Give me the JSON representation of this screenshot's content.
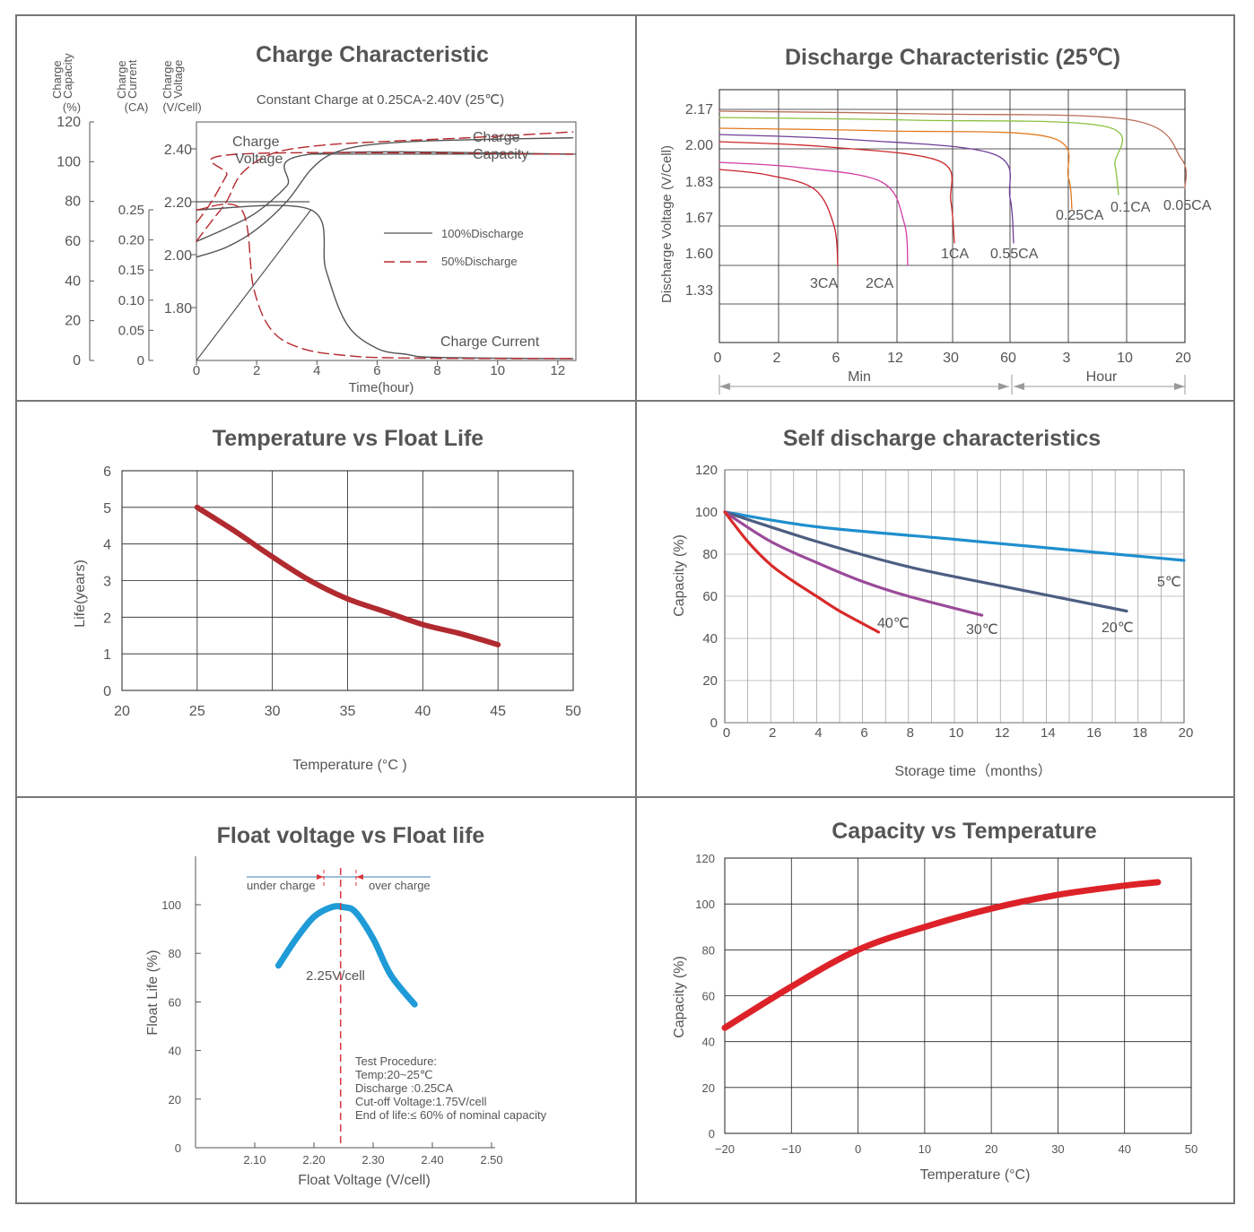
{
  "chart_data": [
    {
      "type": "line",
      "title": "Charge Characteristic",
      "subtitle": "Constant Charge at 0.25CA-2.40V  (25℃)",
      "xlabel": "Time(hour)",
      "x_ticks": [
        "0",
        "2",
        "4",
        "6",
        "8",
        "10",
        "12"
      ],
      "axes": [
        {
          "label": [
            "Charge",
            "Capacity"
          ],
          "unit": "(%)",
          "ticks": [
            "120",
            "100",
            "80",
            "60",
            "40",
            "20",
            "0"
          ]
        },
        {
          "label": [
            "Charge",
            "Current"
          ],
          "unit": "(CA)",
          "ticks": [
            "0.25",
            "0.20",
            "0.15",
            "0.10",
            "0.05",
            "0"
          ]
        },
        {
          "label": [
            "Charge",
            "Voltage"
          ],
          "unit": "(V/Cell)",
          "ticks": [
            "2.40",
            "2.20",
            "2.00",
            "1.80"
          ]
        }
      ],
      "annotations": {
        "voltage": [
          "Charge",
          "Voltage"
        ],
        "capacity": [
          "Charge",
          "Capacity"
        ],
        "current": "Charge Current"
      },
      "legend": [
        {
          "label": "100%Discharge",
          "style": "solid",
          "color": "#555555"
        },
        {
          "label": "50%Discharge",
          "style": "dashed",
          "color": "#c0282d"
        }
      ],
      "series": [
        {
          "name": "Voltage 100%",
          "x": [
            0,
            1,
            2,
            3,
            3.8,
            12.5
          ],
          "y": [
            2.05,
            2.1,
            2.16,
            2.26,
            2.38,
            2.38
          ]
        },
        {
          "name": "Voltage 50%",
          "x": [
            0,
            0.5,
            1,
            1.4,
            12.5
          ],
          "y": [
            2.12,
            2.2,
            2.3,
            2.38,
            2.38
          ]
        },
        {
          "name": "Capacity 100%",
          "x": [
            0,
            1,
            2,
            3,
            3.8,
            4.5,
            5.5,
            7,
            9,
            12.5
          ],
          "y": [
            52,
            57,
            66,
            80,
            96,
            104,
            108,
            110,
            111,
            112
          ]
        },
        {
          "name": "Capacity 50%",
          "x": [
            0,
            0.5,
            1,
            1.5,
            2.5,
            4,
            6,
            9,
            12.5
          ],
          "y": [
            60,
            70,
            80,
            94,
            104,
            108,
            110,
            112,
            115
          ]
        },
        {
          "name": "Current 100%",
          "x": [
            0,
            3.8,
            4.3,
            5,
            6,
            7,
            8,
            12.5
          ],
          "y": [
            0.25,
            0.25,
            0.15,
            0.06,
            0.02,
            0.01,
            0.005,
            0.003
          ]
        },
        {
          "name": "Current 50%",
          "x": [
            0,
            1.5,
            1.9,
            2.5,
            3.5,
            5,
            7,
            12.5
          ],
          "y": [
            0.25,
            0.25,
            0.12,
            0.05,
            0.02,
            0.008,
            0.004,
            0.003
          ]
        }
      ]
    },
    {
      "type": "line",
      "title": "Discharge Characteristic (25℃)",
      "ylabel": "Discharge Voltage (V/Cell)",
      "y_ticks": [
        "2.17",
        "2.00",
        "1.83",
        "1.67",
        "1.60",
        "1.33"
      ],
      "x_ticks": [
        "0",
        "2",
        "6",
        "12",
        "30",
        "60",
        "3",
        "10",
        "20"
      ],
      "x_groups": [
        "Min",
        "Hour"
      ],
      "series": [
        {
          "name": "3CA",
          "color": "#c8202e",
          "x_end": 6.3
        },
        {
          "name": "2CA",
          "color": "#d23ea4",
          "x_end": 13.5
        },
        {
          "name": "1CA",
          "color": "#cc2929",
          "x_end": 31
        },
        {
          "name": "0.55CA",
          "color": "#6e3f98",
          "x_end": 62
        },
        {
          "name": "0.25CA",
          "color": "#e3791f",
          "x_end": 3.1
        },
        {
          "name": "0.1CA",
          "color": "#8cc040",
          "x_end": 9.8
        },
        {
          "name": "0.05CA",
          "color": "#b86d55",
          "x_end": 20
        }
      ]
    },
    {
      "type": "line",
      "title": "Temperature vs Float Life",
      "xlabel": "Temperature (°C )",
      "ylabel": "Life(years)",
      "xlim": [
        20,
        50
      ],
      "ylim": [
        0,
        6
      ],
      "x_ticks": [
        "20",
        "25",
        "30",
        "35",
        "40",
        "45",
        "50"
      ],
      "y_ticks": [
        "6",
        "5",
        "4",
        "3",
        "2",
        "1",
        "0"
      ],
      "x": [
        25,
        27.5,
        30,
        32.5,
        35,
        37.5,
        40,
        42.5,
        45
      ],
      "y": [
        5.0,
        4.35,
        3.65,
        3.0,
        2.5,
        2.15,
        1.8,
        1.55,
        1.25
      ]
    },
    {
      "type": "line",
      "title": "Self discharge characteristics",
      "xlabel": "Storage time（months）",
      "ylabel": "Capacity (%)",
      "xlim": [
        0,
        20
      ],
      "ylim": [
        0,
        120
      ],
      "x_ticks": [
        "0",
        "2",
        "4",
        "6",
        "8",
        "10",
        "12",
        "14",
        "16",
        "18",
        "20"
      ],
      "y_ticks": [
        "120",
        "100",
        "80",
        "60",
        "40",
        "20",
        "0"
      ],
      "series": [
        {
          "name": "5℃",
          "color": "#1f8fce",
          "x": [
            0,
            4,
            10,
            16,
            20
          ],
          "y": [
            100,
            93,
            87,
            81,
            77
          ]
        },
        {
          "name": "20℃",
          "color": "#4d5e82",
          "x": [
            0,
            4,
            8,
            12,
            17.5
          ],
          "y": [
            100,
            86,
            74,
            65,
            53
          ]
        },
        {
          "name": "30℃",
          "color": "#9a4a99",
          "x": [
            0,
            2,
            4,
            6,
            8,
            11.2
          ],
          "y": [
            100,
            86,
            76,
            67,
            60,
            51
          ]
        },
        {
          "name": "40℃",
          "color": "#d92a2a",
          "x": [
            0,
            1,
            2,
            3,
            4,
            5,
            6.7
          ],
          "y": [
            100,
            86,
            75,
            67,
            60,
            53,
            43
          ]
        }
      ]
    },
    {
      "type": "line",
      "title": "Float voltage vs Float life",
      "xlabel": "Float Voltage (V/cell)",
      "ylabel": "Float Life (%)",
      "x_ticks": [
        "2.10",
        "2.20",
        "2.30",
        "2.40",
        "2.50"
      ],
      "y_ticks": [
        "100",
        "80",
        "60",
        "40",
        "20",
        "0"
      ],
      "annotations": [
        "under charge",
        "over charge",
        "2.25V/cell"
      ],
      "notes": [
        "Test Procedure:",
        "Temp:20~25℃",
        "Discharge :0.25CA",
        "Cut-off Voltage:1.75V/cell",
        "End of life:≤ 60% of nominal capacity"
      ],
      "x": [
        2.14,
        2.17,
        2.2,
        2.23,
        2.25,
        2.27,
        2.3,
        2.33,
        2.37
      ],
      "y": [
        75,
        86,
        95,
        99,
        99,
        97,
        86,
        71,
        59
      ]
    },
    {
      "type": "line",
      "title": "Capacity vs Temperature",
      "xlabel": "Temperature (°C)",
      "ylabel": "Capacity (%)",
      "xlim": [
        -20,
        50
      ],
      "ylim": [
        0,
        120
      ],
      "x_ticks": [
        "−20",
        "−10",
        "0",
        "10",
        "20",
        "30",
        "40",
        "50"
      ],
      "y_ticks": [
        "120",
        "100",
        "80",
        "60",
        "40",
        "20",
        "0"
      ],
      "x": [
        -20,
        -10,
        0,
        10,
        20,
        30,
        40,
        45
      ],
      "y": [
        46,
        64,
        80,
        90,
        98,
        104,
        108,
        109.5
      ]
    }
  ],
  "colors": {
    "grid": "#222222",
    "frame": "#777777",
    "text": "#555555"
  }
}
